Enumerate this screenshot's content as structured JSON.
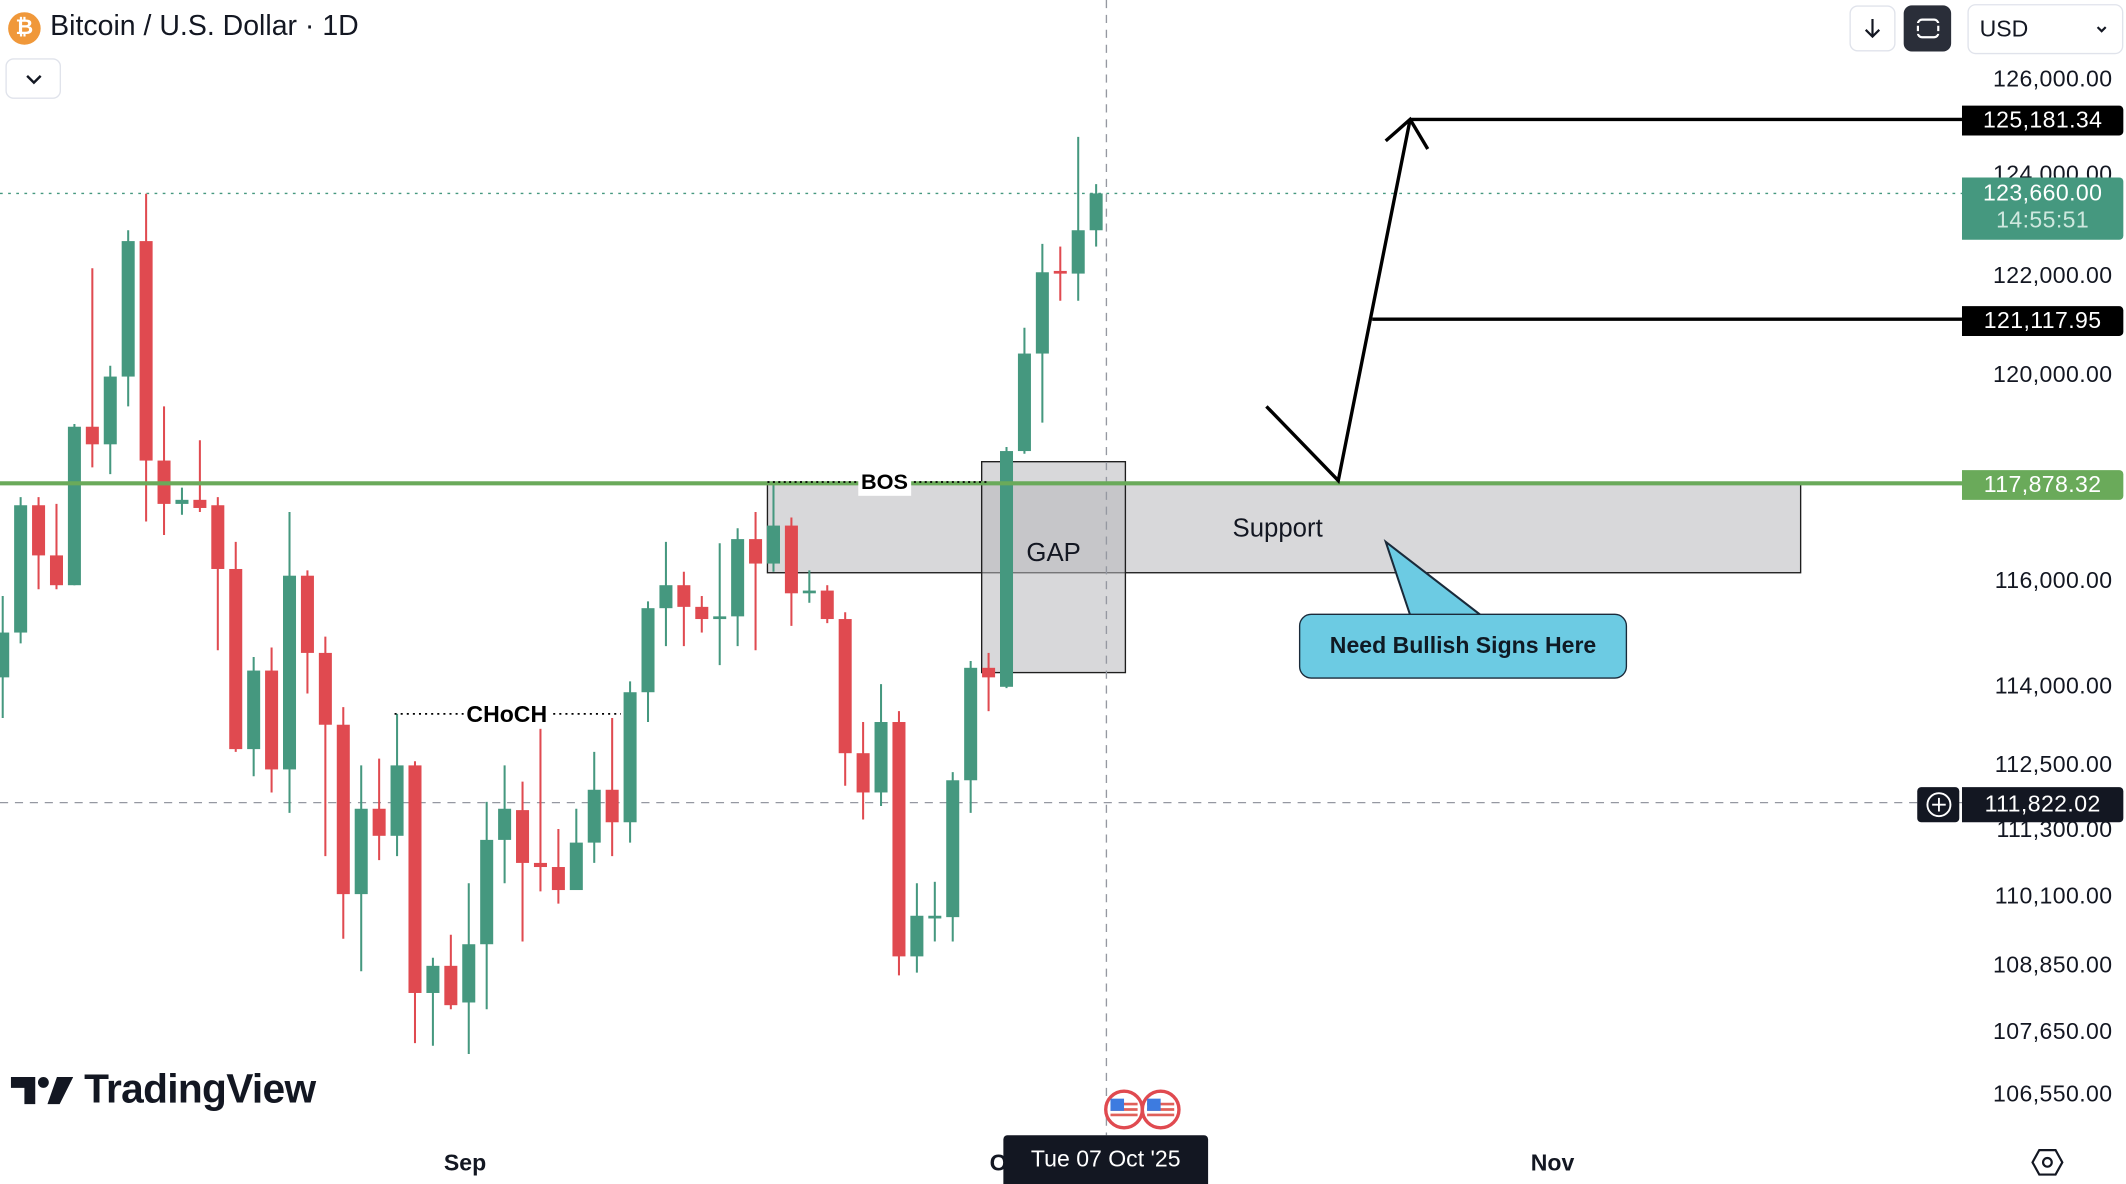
{
  "header": {
    "symbol_icon": "bitcoin-icon",
    "title": "Bitcoin / U.S. Dollar · 1D",
    "collapse_icon": "chevron-down-icon"
  },
  "toolbar": {
    "download_icon": "arrow-down-icon",
    "fullscreen_icon": "square-frame-icon",
    "currency": "USD"
  },
  "colors": {
    "up": "#45987f",
    "down": "#e04a50",
    "support_line": "#6aaa5a",
    "current_price": "#45987f",
    "callout": "#6ccbe3",
    "btc": "#f0983a"
  },
  "chart_data": {
    "type": "candlestick",
    "scale": "log",
    "ylim": [
      106000,
      127000
    ],
    "y_ticks": [
      "126,000.00",
      "124,000.00",
      "122,000.00",
      "120,000.00",
      "116,000.00",
      "114,000.00",
      "112,500.00",
      "111,300.00",
      "110,100.00",
      "108,850.00",
      "107,650.00",
      "106,550.00"
    ],
    "x_ticks": [
      "Sep",
      "Oct",
      "Nov"
    ],
    "ohlc": [
      [
        114160,
        115704,
        113397,
        115008
      ],
      [
        115008,
        117610,
        114802,
        117452
      ],
      [
        117452,
        117610,
        115833,
        116483
      ],
      [
        116483,
        117478,
        115833,
        115911
      ],
      [
        115911,
        119038,
        115911,
        118985
      ],
      [
        118985,
        122142,
        118190,
        118640
      ],
      [
        118640,
        120190,
        118058,
        119975
      ],
      [
        119975,
        122910,
        119385,
        122690
      ],
      [
        122690,
        123654,
        117137,
        118322
      ],
      [
        118322,
        119385,
        116875,
        117478
      ],
      [
        117478,
        117794,
        117267,
        117557
      ],
      [
        117557,
        118720,
        117320,
        117399
      ],
      [
        117452,
        117610,
        114673,
        116222
      ],
      [
        116222,
        116744,
        112764,
        112815
      ],
      [
        112815,
        114545,
        112311,
        114288
      ],
      [
        114288,
        114725,
        112010,
        112437
      ],
      [
        112437,
        117320,
        111634,
        116093
      ],
      [
        116093,
        116196,
        113855,
        114622
      ],
      [
        114622,
        114930,
        110838,
        113270
      ],
      [
        113270,
        113600,
        109336,
        110145
      ],
      [
        110145,
        112512,
        108750,
        111709
      ],
      [
        111709,
        112638,
        110764,
        111211
      ],
      [
        111211,
        113473,
        110838,
        112512
      ],
      [
        112512,
        112588,
        107468,
        108361
      ],
      [
        108361,
        108994,
        107420,
        108848
      ],
      [
        108848,
        109409,
        108070,
        108143
      ],
      [
        108191,
        110343,
        107275,
        109237
      ],
      [
        109237,
        111835,
        108070,
        111136
      ],
      [
        111136,
        112512,
        110343,
        111709
      ],
      [
        111684,
        112211,
        109287,
        110714
      ],
      [
        110714,
        113473,
        110195,
        110639
      ],
      [
        110639,
        111335,
        109973,
        110219
      ],
      [
        110219,
        111709,
        110219,
        111086
      ],
      [
        111086,
        112764,
        110714,
        112060
      ],
      [
        112060,
        113397,
        110838,
        111460
      ],
      [
        111460,
        114084,
        111086,
        113880
      ],
      [
        113880,
        115601,
        113321,
        115472
      ],
      [
        115472,
        116744,
        114751,
        115911
      ],
      [
        115911,
        116170,
        114751,
        115497
      ],
      [
        115497,
        115704,
        115008,
        115265
      ],
      [
        115265,
        116718,
        114391,
        115316
      ],
      [
        115316,
        117006,
        114751,
        116797
      ],
      [
        116797,
        117320,
        114673,
        116326
      ],
      [
        116326,
        117873,
        116170,
        117058
      ],
      [
        117058,
        117215,
        115136,
        115756
      ],
      [
        115756,
        116196,
        115575,
        115808
      ],
      [
        115808,
        115911,
        115187,
        115265
      ],
      [
        115265,
        115394,
        112135,
        112739
      ],
      [
        112739,
        113321,
        111510,
        112010
      ],
      [
        112010,
        114033,
        111759,
        113321
      ],
      [
        113321,
        113524,
        108677,
        109018
      ],
      [
        109018,
        110343,
        108726,
        109752
      ],
      [
        109727,
        110369,
        109287,
        109752
      ],
      [
        109727,
        112387,
        109287,
        112236
      ],
      [
        112236,
        114468,
        111634,
        114340
      ],
      [
        114340,
        114622,
        113524,
        114160
      ],
      [
        113982,
        118587,
        113957,
        118508
      ],
      [
        118508,
        120946,
        118455,
        120432
      ],
      [
        120432,
        122634,
        119065,
        122060
      ],
      [
        122087,
        122579,
        121487,
        122033
      ],
      [
        122033,
        124821,
        121487,
        122910
      ],
      [
        122910,
        123850,
        122579,
        123660
      ]
    ],
    "price_tags": {
      "target_high": "125,181.34",
      "current": "123,660.00",
      "countdown": "14:55:51",
      "target_mid": "121,117.95",
      "support": "117,878.32",
      "crosshair": "111,822.02"
    },
    "levels": {
      "target_high": 125181.34,
      "current": 123660.0,
      "target_mid": 121117.95,
      "support": 117878.32,
      "crosshair": 111822.02,
      "support_zone": [
        116150,
        117878.32
      ],
      "gap_zone": [
        114250,
        118300
      ],
      "choch": 113473
    },
    "annotations": {
      "bos": "BOS",
      "choch": "CHoCH",
      "gap": "GAP",
      "support": "Support",
      "callout": "Need Bullish Signs Here"
    },
    "crosshair_date": "Tue 07 Oct '25"
  },
  "branding": {
    "logo": "TradingView"
  },
  "footer": {
    "settings_icon": "hexagon-settings-icon",
    "events_icon": "us-flag-icon"
  }
}
